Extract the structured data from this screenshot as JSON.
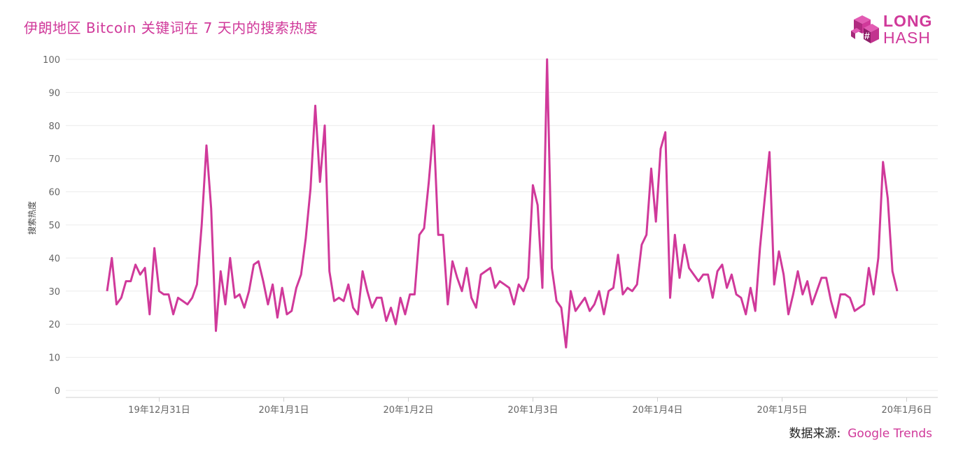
{
  "header": {
    "title": "伊朗地区 Bitcoin 关键词在 7 天内的搜索热度"
  },
  "logo": {
    "line1": "LONG",
    "line2": "HASH"
  },
  "footer": {
    "source_label": "数据来源:",
    "source_value": "Google Trends"
  },
  "colors": {
    "line": "#d0399a",
    "grid": "#ececec",
    "axis_text": "#666666"
  },
  "chart_data": {
    "type": "line",
    "title": "伊朗地区 Bitcoin 关键词在 7 天内的搜索热度",
    "xlabel": "",
    "ylabel": "搜索热度",
    "ylim": [
      0,
      100
    ],
    "yticks": [
      0,
      10,
      20,
      30,
      40,
      50,
      60,
      70,
      80,
      90,
      100
    ],
    "grid": true,
    "x_tick_labels": [
      "19年12月31日",
      "20年1月1日",
      "20年1月2日",
      "20年1月3日",
      "20年1月4日",
      "20年1月5日",
      "20年1月6日"
    ],
    "series": [
      {
        "values": [
          30,
          40,
          26,
          28,
          33,
          33,
          38,
          35,
          37,
          23,
          43,
          30,
          29,
          29,
          23,
          28,
          27,
          26,
          28,
          32,
          50,
          74,
          55,
          18,
          36,
          26,
          40,
          28,
          29,
          25,
          30,
          38,
          39,
          33,
          26,
          32,
          22,
          31,
          23,
          24,
          31,
          35,
          46,
          61,
          86,
          63,
          80,
          36,
          27,
          28,
          27,
          32,
          25,
          23,
          36,
          30,
          25,
          28,
          28,
          21,
          25,
          20,
          28,
          23,
          29,
          29,
          47,
          49,
          63,
          80,
          47,
          47,
          26,
          39,
          34,
          30,
          37,
          28,
          25,
          35,
          36,
          37,
          31,
          33,
          32,
          31,
          26,
          32,
          30,
          34,
          62,
          56,
          31,
          100,
          37,
          27,
          25,
          13,
          30,
          24,
          26,
          28,
          24,
          26,
          30,
          23,
          30,
          31,
          41,
          29,
          31,
          30,
          32,
          44,
          47,
          67,
          51,
          73,
          78,
          28,
          47,
          34,
          44,
          37,
          35,
          33,
          35,
          35,
          28,
          36,
          38,
          31,
          35,
          29,
          28,
          23,
          31,
          24,
          43,
          58,
          72,
          32,
          42,
          35,
          23,
          29,
          36,
          29,
          33,
          26,
          30,
          34,
          34,
          27,
          22,
          29,
          29,
          28,
          24,
          25,
          26,
          37,
          29,
          40,
          69,
          58,
          36,
          30
        ]
      }
    ]
  }
}
